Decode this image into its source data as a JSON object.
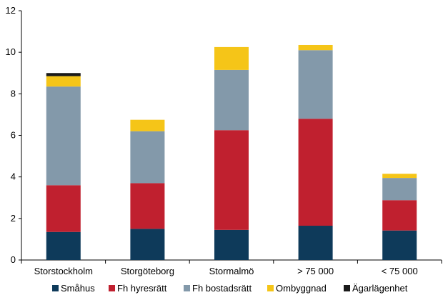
{
  "chart_data": {
    "type": "bar",
    "stacked": true,
    "title": "",
    "xlabel": "",
    "ylabel": "",
    "ylim": [
      0,
      12
    ],
    "yticks": [
      0,
      2,
      4,
      6,
      8,
      10,
      12
    ],
    "grid": false,
    "legend_position": "bottom",
    "categories": [
      "Storstockholm",
      "Storgöteborg",
      "Stormalmö",
      "> 75 000",
      "< 75 000"
    ],
    "series": [
      {
        "name": "Småhus",
        "color": "#0e3a5a",
        "values": [
          1.35,
          1.5,
          1.45,
          1.65,
          1.42
        ]
      },
      {
        "name": "Fh hyresrätt",
        "color": "#c0202f",
        "values": [
          2.25,
          2.2,
          4.8,
          5.15,
          1.46
        ]
      },
      {
        "name": "Fh bostadsrätt",
        "color": "#8399aa",
        "values": [
          4.75,
          2.5,
          2.9,
          3.3,
          1.07
        ]
      },
      {
        "name": "Ombyggnad",
        "color": "#f5c518",
        "values": [
          0.5,
          0.55,
          1.1,
          0.25,
          0.2
        ]
      },
      {
        "name": "Ägarlägenhet",
        "color": "#1a1a1a",
        "values": [
          0.15,
          0,
          0,
          0,
          0
        ]
      }
    ]
  }
}
